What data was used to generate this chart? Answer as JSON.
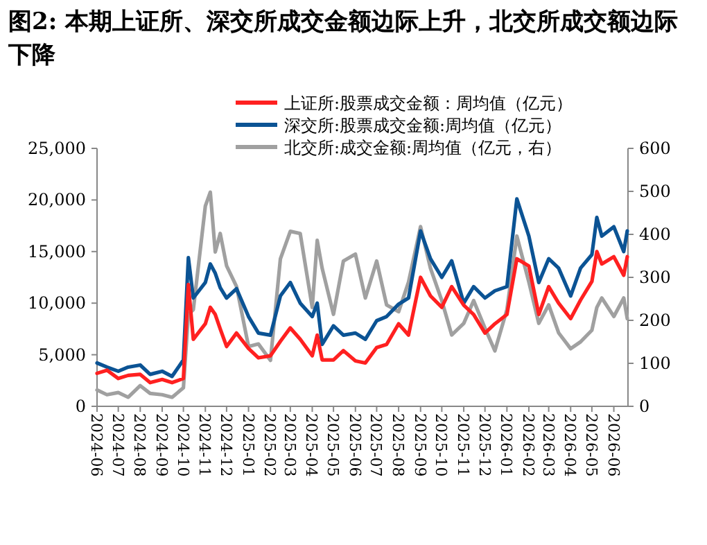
{
  "chart_data": {
    "type": "line",
    "title": "图2: 本期上证所、深交所成交金额边际上升，北交所成交额边际下降",
    "x": [
      "2024-06-01",
      "2024-06-15",
      "2024-07-01",
      "2024-07-15",
      "2024-08-01",
      "2024-08-15",
      "2024-09-01",
      "2024-09-15",
      "2024-10-01",
      "2024-10-08",
      "2024-10-15",
      "2024-11-01",
      "2024-11-08",
      "2024-11-15",
      "2024-11-22",
      "2024-12-01",
      "2024-12-15",
      "2025-01-01",
      "2025-01-15",
      "2025-02-01",
      "2025-02-15",
      "2025-03-01",
      "2025-03-15",
      "2025-04-01",
      "2025-04-08",
      "2025-04-15",
      "2025-05-01",
      "2025-05-15",
      "2025-06-01",
      "2025-06-15",
      "2025-07-01",
      "2025-07-15",
      "2025-08-01",
      "2025-08-15",
      "2025-09-01",
      "2025-09-15",
      "2025-10-01",
      "2025-10-15",
      "2025-11-01",
      "2025-11-15",
      "2025-12-01",
      "2025-12-15",
      "2026-01-01",
      "2026-01-15",
      "2026-02-01",
      "2026-02-15",
      "2026-03-01",
      "2026-03-15",
      "2026-04-01",
      "2026-04-15",
      "2026-05-01",
      "2026-05-08",
      "2026-05-15",
      "2026-06-01",
      "2026-06-15",
      "2026-06-20"
    ],
    "series": [
      {
        "name": "上证所:股票成交金额：周均值（亿元）",
        "color": "#ff2020",
        "values": [
          3200,
          3500,
          2700,
          3000,
          3100,
          2300,
          2600,
          2300,
          2700,
          11800,
          6500,
          8000,
          9600,
          8900,
          7500,
          5800,
          7100,
          5600,
          4700,
          4900,
          6300,
          7600,
          6500,
          4900,
          6900,
          4500,
          4500,
          5400,
          4400,
          4200,
          5700,
          6000,
          8000,
          6900,
          12500,
          10700,
          9600,
          11600,
          9800,
          8900,
          7100,
          8000,
          8900,
          14300,
          13600,
          8900,
          11600,
          10000,
          8500,
          10300,
          12100,
          15000,
          13800,
          14500,
          12700,
          14500
        ]
      },
      {
        "name": "深交所:股票成交金额:周均值（亿元）",
        "color": "#0b5394",
        "values": [
          4200,
          3800,
          3400,
          3800,
          4000,
          3100,
          3400,
          2900,
          4500,
          14400,
          10500,
          12000,
          13800,
          12900,
          11500,
          10500,
          11400,
          8700,
          7100,
          6900,
          10700,
          12000,
          10000,
          8700,
          10000,
          6000,
          7800,
          6900,
          7100,
          6500,
          8300,
          8700,
          9900,
          10500,
          17000,
          14300,
          12500,
          14100,
          10000,
          11600,
          10500,
          11200,
          11600,
          20100,
          16500,
          12000,
          14300,
          13400,
          10700,
          13400,
          14700,
          18300,
          16500,
          17400,
          15000,
          17000
        ]
      },
      {
        "name": "北交所:成交金额:周均值（亿元，右）",
        "color": "#a0a0a0",
        "axis": "y2",
        "values": [
          38,
          27,
          32,
          21,
          48,
          30,
          27,
          21,
          43,
          214,
          225,
          466,
          498,
          359,
          402,
          327,
          279,
          139,
          145,
          107,
          343,
          407,
          402,
          230,
          386,
          321,
          214,
          338,
          354,
          252,
          338,
          236,
          220,
          289,
          418,
          321,
          246,
          166,
          193,
          246,
          182,
          129,
          225,
          396,
          289,
          193,
          236,
          171,
          134,
          150,
          177,
          230,
          252,
          209,
          252,
          204
        ]
      }
    ],
    "xlim": [
      "2024-06-01",
      "2026-06-21"
    ],
    "xticks": [
      "2024-06",
      "2024-07",
      "2024-08",
      "2024-09",
      "2024-10",
      "2024-11",
      "2024-12",
      "2025-01",
      "2025-02",
      "2025-03",
      "2025-04",
      "2025-05",
      "2025-06",
      "2025-07",
      "2025-08",
      "2025-09",
      "2025-10",
      "2025-11",
      "2025-12",
      "2026-01",
      "2026-02",
      "2026-03",
      "2026-04",
      "2026-05",
      "2026-06"
    ],
    "ylim": [
      0,
      25000
    ],
    "yticks": [
      0,
      {
        "value": 5000,
        "label": "5,000"
      },
      {
        "value": 10000,
        "label": "10,000"
      },
      {
        "value": 15000,
        "label": "15,000"
      },
      {
        "value": 20000,
        "label": "20,000"
      },
      {
        "value": 25000,
        "label": "25,000"
      }
    ],
    "y2lim": [
      0,
      600
    ],
    "y2ticks": [
      0,
      100,
      200,
      300,
      400,
      500,
      600
    ],
    "legend": "top",
    "grid": false,
    "marker": "none",
    "line_style": "solid"
  }
}
